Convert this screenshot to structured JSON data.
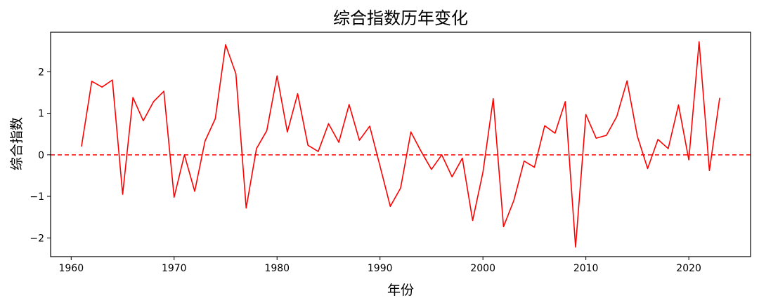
{
  "chart_data": {
    "type": "line",
    "title": "综合指数历年变化",
    "xlabel": "年份",
    "ylabel": "综合指数",
    "xlim": [
      1958,
      2026
    ],
    "ylim": [
      -2.45,
      2.95
    ],
    "xticks": [
      1960,
      1970,
      1980,
      1990,
      2000,
      2010,
      2020
    ],
    "yticks": [
      -2,
      -1,
      0,
      1,
      2
    ],
    "xtick_labels": [
      "1960",
      "1970",
      "1980",
      "1990",
      "2000",
      "2010",
      "2020"
    ],
    "ytick_labels": [
      "−2",
      "−1",
      "0",
      "1",
      "2"
    ],
    "grid": false,
    "line_color": "#ff0000",
    "reference_line": {
      "y": 0,
      "style": "dashed",
      "color": "#ff0000"
    },
    "series": [
      {
        "x": [
          1961,
          1962,
          1963,
          1964,
          1965,
          1966,
          1967,
          1968,
          1969,
          1970,
          1971,
          1972,
          1973,
          1974,
          1975,
          1976,
          1977,
          1978,
          1979,
          1980,
          1981,
          1982,
          1983,
          1984,
          1985,
          1986,
          1987,
          1988,
          1989,
          1990,
          1991,
          1992,
          1993,
          1994,
          1995,
          1996,
          1997,
          1998,
          1999,
          2000,
          2001,
          2002,
          2003,
          2004,
          2005,
          2006,
          2007,
          2008,
          2009,
          2010,
          2011,
          2012,
          2013,
          2014,
          2015,
          2016,
          2017,
          2018,
          2019,
          2020,
          2021,
          2022,
          2023
        ],
        "y": [
          0.2,
          1.77,
          1.63,
          1.8,
          -0.95,
          1.38,
          0.82,
          1.28,
          1.53,
          -1.02,
          0.0,
          -0.88,
          0.33,
          0.87,
          2.65,
          1.95,
          -1.28,
          0.15,
          0.58,
          1.9,
          0.55,
          1.47,
          0.23,
          0.08,
          0.75,
          0.3,
          1.21,
          0.35,
          0.69,
          -0.27,
          -1.24,
          -0.8,
          0.55,
          0.08,
          -0.35,
          0.0,
          -0.53,
          -0.08,
          -1.58,
          -0.42,
          1.35,
          -1.73,
          -1.1,
          -0.15,
          -0.3,
          0.7,
          0.52,
          1.28,
          -2.22,
          0.97,
          0.4,
          0.47,
          0.92,
          1.78,
          0.45,
          -0.33,
          0.37,
          0.15,
          1.2,
          -0.12,
          2.72,
          -0.38,
          1.37
        ]
      }
    ]
  }
}
